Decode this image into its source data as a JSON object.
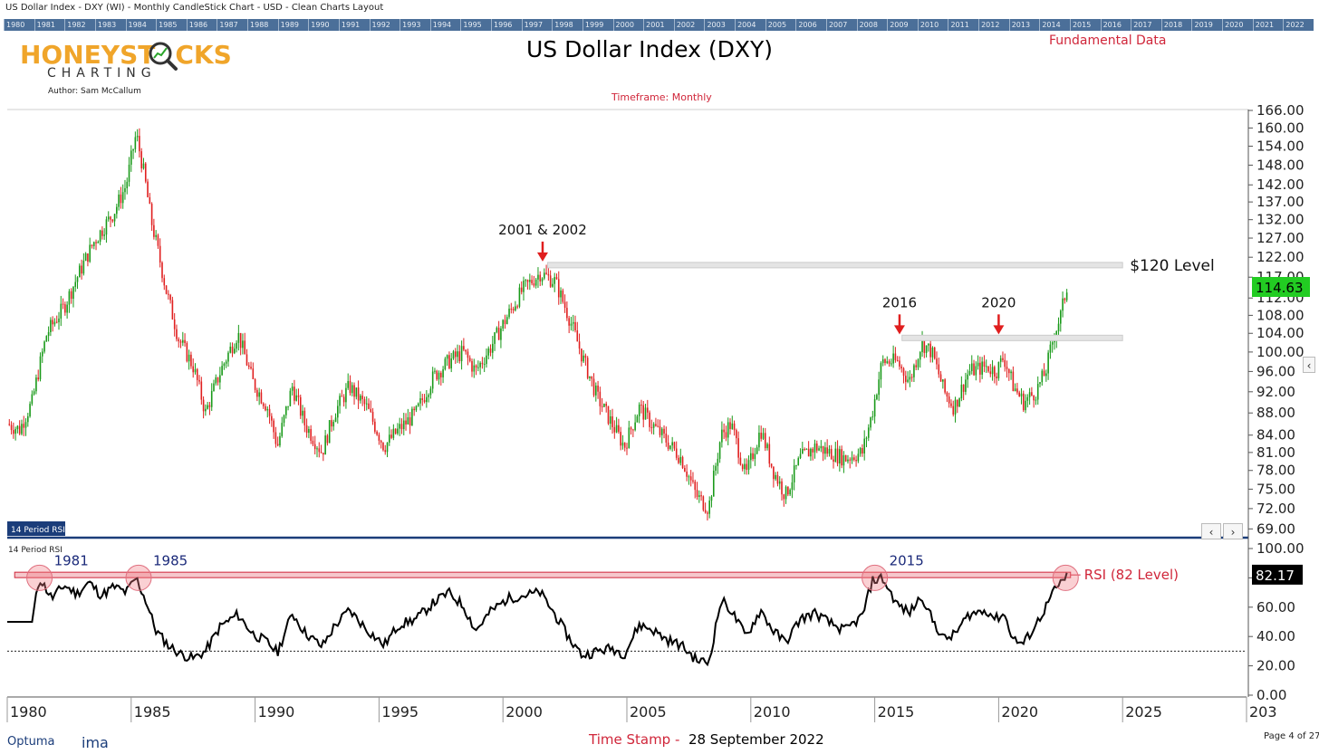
{
  "window_title": "US Dollar Index - DXY (WI) - Monthly CandleStick Chart - USD - Clean Charts Layout",
  "year_ruler": [
    "1980",
    "1981",
    "1982",
    "1983",
    "1984",
    "1985",
    "1986",
    "1987",
    "1988",
    "1989",
    "1990",
    "1991",
    "1992",
    "1993",
    "1994",
    "1995",
    "1996",
    "1997",
    "1998",
    "1999",
    "2000",
    "2001",
    "2002",
    "2003",
    "2004",
    "2005",
    "2006",
    "2007",
    "2008",
    "2009",
    "2010",
    "2011",
    "2012",
    "2013",
    "2014",
    "2015",
    "2016",
    "2017",
    "2018",
    "2019",
    "2020",
    "2021",
    "2022"
  ],
  "logo": {
    "word_left": "HONEYST",
    "word_right": "CKS",
    "sub": "CHARTING"
  },
  "author": "Author: Sam McCallum",
  "header": {
    "title": "US Dollar Index (DXY)",
    "fundamental": "Fundamental Data",
    "timeframe": "Timeframe: Monthly"
  },
  "footer": {
    "optuma": "Optuma",
    "ima": "ima",
    "timestamp_label": "Time Stamp -",
    "timestamp_date": "28 September 2022",
    "page": "Page 4 of 27"
  },
  "colors": {
    "up": "#1a9a1a",
    "down": "#e02020",
    "annotation_red": "#e01e1e",
    "last_price_bg": "#22cc22",
    "rsi_line": "#000000",
    "rsi_band": "#d0263a"
  },
  "icons": {
    "logo_magnifier": "magnifier-icon",
    "arrow": "down-arrow-icon",
    "scroll_left": "chevron-left-icon",
    "scroll_right": "chevron-right-icon",
    "collapse": "chevron-left-icon"
  },
  "chart_data": [
    {
      "type": "candlestick",
      "title": "US Dollar Index (DXY)",
      "x_range": [
        1980,
        2030
      ],
      "x_ticks": [
        "1980",
        "1985",
        "1990",
        "1995",
        "2000",
        "2005",
        "2010",
        "2015",
        "2020",
        "2025",
        "203"
      ],
      "y_ticks": [
        "166.00",
        "160.00",
        "154.00",
        "148.00",
        "142.00",
        "137.00",
        "132.00",
        "127.00",
        "122.00",
        "117.00",
        "112.00",
        "108.00",
        "104.00",
        "100.00",
        "96.00",
        "92.00",
        "88.00",
        "84.00",
        "81.00",
        "78.00",
        "75.00",
        "72.00",
        "69.00"
      ],
      "y_scale": "log",
      "ylim": [
        68,
        166
      ],
      "last_price": "114.63",
      "close_path": [
        [
          1980.0,
          86
        ],
        [
          1980.5,
          85
        ],
        [
          1981.0,
          90
        ],
        [
          1981.6,
          104
        ],
        [
          1982.3,
          110
        ],
        [
          1982.9,
          118
        ],
        [
          1983.5,
          126
        ],
        [
          1984.3,
          134
        ],
        [
          1984.8,
          142
        ],
        [
          1985.2,
          158
        ],
        [
          1985.5,
          146
        ],
        [
          1985.8,
          132
        ],
        [
          1986.4,
          114
        ],
        [
          1986.9,
          103
        ],
        [
          1987.5,
          97
        ],
        [
          1988.0,
          88
        ],
        [
          1988.6,
          96
        ],
        [
          1989.3,
          104
        ],
        [
          1989.9,
          94
        ],
        [
          1990.5,
          89
        ],
        [
          1990.9,
          82
        ],
        [
          1991.5,
          93
        ],
        [
          1992.0,
          86
        ],
        [
          1992.7,
          81
        ],
        [
          1993.2,
          88
        ],
        [
          1993.8,
          93
        ],
        [
          1994.5,
          89
        ],
        [
          1995.2,
          82
        ],
        [
          1995.8,
          85
        ],
        [
          1996.5,
          88
        ],
        [
          1997.2,
          95
        ],
        [
          1997.8,
          98
        ],
        [
          1998.4,
          100
        ],
        [
          1998.9,
          96
        ],
        [
          1999.5,
          101
        ],
        [
          2000.2,
          108
        ],
        [
          2000.8,
          114
        ],
        [
          2001.5,
          118
        ],
        [
          2002.1,
          116
        ],
        [
          2002.7,
          107
        ],
        [
          2003.2,
          99
        ],
        [
          2003.8,
          91
        ],
        [
          2004.4,
          86
        ],
        [
          2004.9,
          82
        ],
        [
          2005.5,
          89
        ],
        [
          2006.0,
          86
        ],
        [
          2006.6,
          83
        ],
        [
          2007.2,
          80
        ],
        [
          2007.8,
          74
        ],
        [
          2008.3,
          72
        ],
        [
          2008.8,
          84
        ],
        [
          2009.2,
          86
        ],
        [
          2009.8,
          77
        ],
        [
          2010.4,
          85
        ],
        [
          2010.9,
          78
        ],
        [
          2011.4,
          74
        ],
        [
          2012.0,
          80
        ],
        [
          2012.6,
          82
        ],
        [
          2013.2,
          81
        ],
        [
          2013.8,
          80
        ],
        [
          2014.5,
          81
        ],
        [
          2014.9,
          88
        ],
        [
          2015.3,
          98
        ],
        [
          2015.9,
          98
        ],
        [
          2016.4,
          94
        ],
        [
          2016.9,
          102
        ],
        [
          2017.3,
          100
        ],
        [
          2017.8,
          92
        ],
        [
          2018.2,
          89
        ],
        [
          2018.8,
          96
        ],
        [
          2019.5,
          97
        ],
        [
          2019.9,
          96
        ],
        [
          2020.2,
          99
        ],
        [
          2020.6,
          93
        ],
        [
          2021.0,
          90
        ],
        [
          2021.5,
          92
        ],
        [
          2021.9,
          96
        ],
        [
          2022.2,
          103
        ],
        [
          2022.5,
          108
        ],
        [
          2022.75,
          114.63
        ]
      ],
      "annotations": [
        {
          "label": "2001 & 2002",
          "x": 2001.6,
          "y": 120
        },
        {
          "label": "2016",
          "x": 2016.0,
          "y": 103
        },
        {
          "label": "2020",
          "x": 2020.0,
          "y": 103
        }
      ],
      "levels": [
        {
          "label": "$120 Level",
          "y": 120,
          "from": 2001.8,
          "to": 2025.0
        },
        {
          "label": "",
          "y": 103,
          "from": 2016.1,
          "to": 2025.0
        }
      ]
    },
    {
      "type": "line",
      "panel_label": "14 Period RSI",
      "x_range": [
        1980,
        2030
      ],
      "ylim": [
        0,
        100
      ],
      "y_ticks": [
        "100.00",
        "80.00",
        "60.00",
        "40.00",
        "20.00",
        "0.00"
      ],
      "last_value": "82.17",
      "reference_level": {
        "label": "RSI (82 Level)",
        "y": 82
      },
      "lower_dotted": 30,
      "highlights": [
        {
          "label": "1981",
          "x": 1981.3,
          "y": 80
        },
        {
          "label": "1985",
          "x": 1985.3,
          "y": 80
        },
        {
          "label": "2015",
          "x": 2015.0,
          "y": 80
        },
        {
          "label": "",
          "x": 2022.7,
          "y": 80
        }
      ],
      "series": [
        [
          1980.0,
          50
        ],
        [
          1981.0,
          50
        ],
        [
          1981.3,
          80
        ],
        [
          1981.8,
          66
        ],
        [
          1982.3,
          75
        ],
        [
          1982.8,
          69
        ],
        [
          1983.3,
          77
        ],
        [
          1983.8,
          68
        ],
        [
          1984.3,
          74
        ],
        [
          1984.8,
          70
        ],
        [
          1985.2,
          80
        ],
        [
          1985.6,
          64
        ],
        [
          1986.0,
          44
        ],
        [
          1986.5,
          34
        ],
        [
          1987.0,
          28
        ],
        [
          1987.5,
          25
        ],
        [
          1988.0,
          30
        ],
        [
          1988.6,
          47
        ],
        [
          1989.3,
          55
        ],
        [
          1989.9,
          42
        ],
        [
          1990.5,
          36
        ],
        [
          1990.9,
          29
        ],
        [
          1991.5,
          56
        ],
        [
          1992.0,
          43
        ],
        [
          1992.7,
          33
        ],
        [
          1993.2,
          47
        ],
        [
          1993.8,
          58
        ],
        [
          1994.5,
          45
        ],
        [
          1995.2,
          34
        ],
        [
          1995.8,
          48
        ],
        [
          1996.5,
          52
        ],
        [
          1997.2,
          63
        ],
        [
          1997.8,
          70
        ],
        [
          1998.4,
          61
        ],
        [
          1998.9,
          44
        ],
        [
          1999.5,
          57
        ],
        [
          2000.2,
          66
        ],
        [
          2000.8,
          68
        ],
        [
          2001.5,
          70
        ],
        [
          2002.1,
          55
        ],
        [
          2002.7,
          38
        ],
        [
          2003.2,
          27
        ],
        [
          2003.8,
          30
        ],
        [
          2004.4,
          32
        ],
        [
          2004.9,
          28
        ],
        [
          2005.5,
          48
        ],
        [
          2006.0,
          45
        ],
        [
          2006.6,
          38
        ],
        [
          2007.2,
          34
        ],
        [
          2007.8,
          24
        ],
        [
          2008.3,
          22
        ],
        [
          2008.8,
          65
        ],
        [
          2009.2,
          58
        ],
        [
          2009.8,
          40
        ],
        [
          2010.4,
          58
        ],
        [
          2010.9,
          44
        ],
        [
          2011.4,
          36
        ],
        [
          2012.0,
          52
        ],
        [
          2012.6,
          56
        ],
        [
          2013.2,
          49
        ],
        [
          2013.8,
          44
        ],
        [
          2014.5,
          54
        ],
        [
          2014.9,
          78
        ],
        [
          2015.3,
          80
        ],
        [
          2015.9,
          62
        ],
        [
          2016.4,
          56
        ],
        [
          2016.9,
          68
        ],
        [
          2017.3,
          52
        ],
        [
          2017.8,
          38
        ],
        [
          2018.2,
          41
        ],
        [
          2018.8,
          55
        ],
        [
          2019.5,
          58
        ],
        [
          2019.9,
          52
        ],
        [
          2020.2,
          56
        ],
        [
          2020.6,
          38
        ],
        [
          2021.0,
          35
        ],
        [
          2021.5,
          48
        ],
        [
          2021.9,
          60
        ],
        [
          2022.2,
          70
        ],
        [
          2022.5,
          76
        ],
        [
          2022.75,
          82.17
        ]
      ]
    }
  ]
}
